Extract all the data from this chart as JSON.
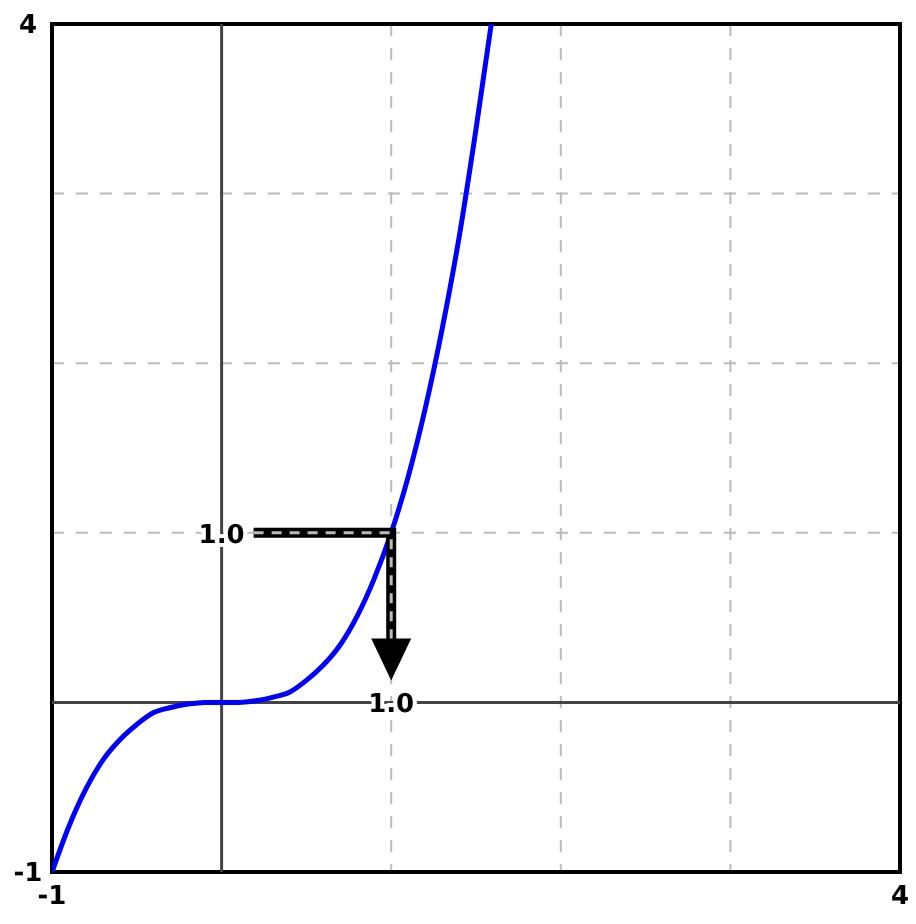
{
  "chart_data": {
    "type": "line",
    "x": [
      -1,
      -0.9,
      -0.8,
      -0.7,
      -0.6,
      -0.5,
      -0.4,
      -0.3,
      -0.2,
      -0.1,
      0,
      0.1,
      0.2,
      0.3,
      0.4,
      0.5,
      0.6,
      0.7,
      0.8,
      0.9,
      1,
      1.1,
      1.2,
      1.3,
      1.4,
      1.5,
      1.59
    ],
    "series": [
      {
        "color": "#0000ff",
        "values": [
          -1,
          -0.73,
          -0.51,
          -0.34,
          -0.22,
          -0.13,
          -0.06,
          -0.03,
          -0.01,
          0,
          0,
          0,
          0.01,
          0.03,
          0.06,
          0.13,
          0.22,
          0.34,
          0.51,
          0.73,
          1,
          1.33,
          1.73,
          2.2,
          2.74,
          3.38,
          4
        ]
      }
    ],
    "xlim": [
      -1,
      4
    ],
    "ylim": [
      -1,
      4
    ],
    "xticks": [
      {
        "value": -1,
        "label": "-1"
      },
      {
        "value": 1,
        "label": null
      },
      {
        "value": 2,
        "label": null
      },
      {
        "value": 3,
        "label": null
      },
      {
        "value": 4,
        "label": "4"
      }
    ],
    "yticks": [
      {
        "value": -1,
        "label": "-1"
      },
      {
        "value": 1,
        "label": null
      },
      {
        "value": 2,
        "label": null
      },
      {
        "value": 3,
        "label": null
      },
      {
        "value": 4,
        "label": "4"
      }
    ],
    "grid": true,
    "marker": "none",
    "line_style": "solid",
    "annotations": [
      "1.0",
      "1.0"
    ]
  }
}
